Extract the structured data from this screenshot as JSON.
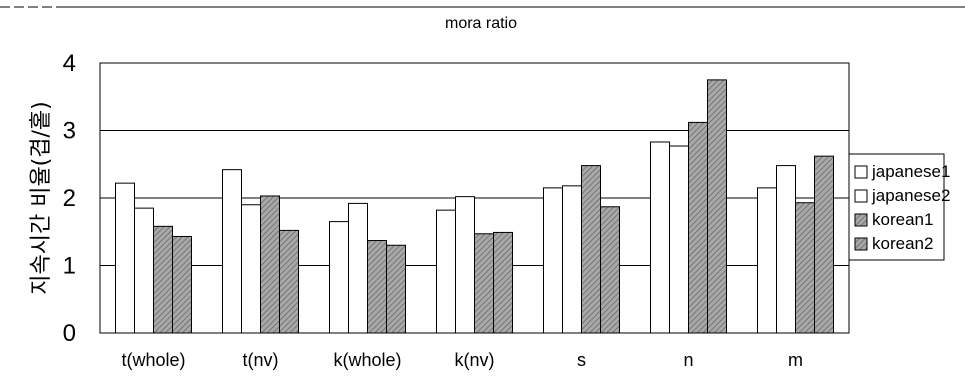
{
  "chart_data": {
    "type": "bar",
    "title": "mora ratio",
    "ylabel": "지속시간 비율(겹/홑)",
    "xlabel": "",
    "ylim": [
      0,
      4
    ],
    "yticks": [
      0,
      1,
      2,
      3,
      4
    ],
    "grid": true,
    "legend_position": "right",
    "categories": [
      "t(whole)",
      "t(nv)",
      "k(whole)",
      "k(nv)",
      "s",
      "n",
      "m"
    ],
    "series": [
      {
        "name": "japanese1",
        "color": "#ffffff",
        "values": [
          2.22,
          2.42,
          1.65,
          1.82,
          2.15,
          2.83,
          2.15
        ]
      },
      {
        "name": "japanese2",
        "color": "#ffffff",
        "values": [
          1.85,
          1.9,
          1.92,
          2.02,
          2.18,
          2.77,
          2.48
        ]
      },
      {
        "name": "korean1",
        "color": "#8c8c8c",
        "values": [
          1.58,
          2.03,
          1.37,
          1.47,
          2.48,
          3.12,
          1.93
        ]
      },
      {
        "name": "korean2",
        "color": "#8c8c8c",
        "values": [
          1.43,
          1.52,
          1.3,
          1.49,
          1.87,
          3.75,
          2.62
        ]
      }
    ]
  }
}
